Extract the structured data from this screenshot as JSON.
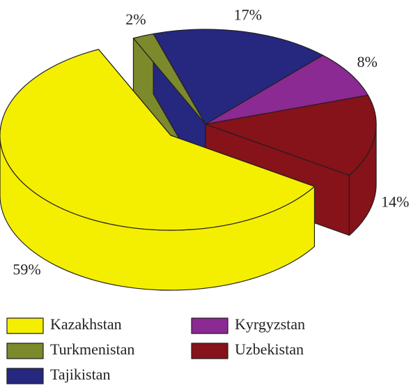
{
  "chart_data": {
    "type": "pie",
    "categories": [
      "Kazakhstan",
      "Turkmenistan",
      "Tajikistan",
      "Kyrgyzstan",
      "Uzbekistan"
    ],
    "values": [
      59,
      2,
      17,
      8,
      14
    ],
    "value_labels": [
      "59%",
      "2%",
      "17%",
      "8%",
      "14%"
    ],
    "colors": [
      "#f4ef00",
      "#7c8a2c",
      "#25287e",
      "#8a2a92",
      "#86121a"
    ]
  }
}
